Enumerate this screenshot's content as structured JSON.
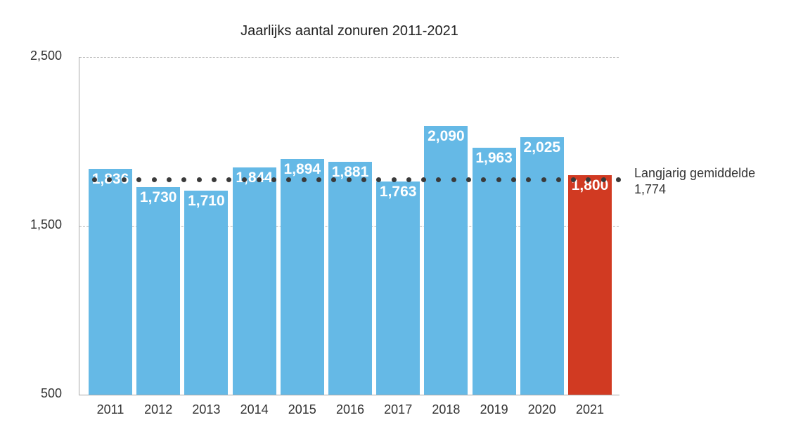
{
  "chart_data": {
    "type": "bar",
    "title": "Jaarlijks aantal zonuren 2011-2021",
    "xlabel": "",
    "ylabel": "",
    "ylim": [
      500,
      2500
    ],
    "yticks": [
      "2,500",
      "1,500",
      "500"
    ],
    "grid": true,
    "categories": [
      "2011",
      "2012",
      "2013",
      "2014",
      "2015",
      "2016",
      "2017",
      "2018",
      "2019",
      "2020",
      "2021"
    ],
    "values": [
      1836,
      1730,
      1710,
      1844,
      1894,
      1881,
      1763,
      2090,
      1963,
      2025,
      1800
    ],
    "value_labels": [
      "1,836",
      "1,730",
      "1,710",
      "1,844",
      "1,894",
      "1,881",
      "1,763",
      "2,090",
      "1,963",
      "2,025",
      "1,800"
    ],
    "colors": {
      "default_bar": "#65b9e6",
      "highlight_bar": "#d13a22",
      "average_line": "#3a3a3a"
    },
    "highlight_category": "2021",
    "reference_line": {
      "label": "Langjarig gemiddelde",
      "value": 1774,
      "value_label": "1,774",
      "style": "dotted"
    }
  }
}
